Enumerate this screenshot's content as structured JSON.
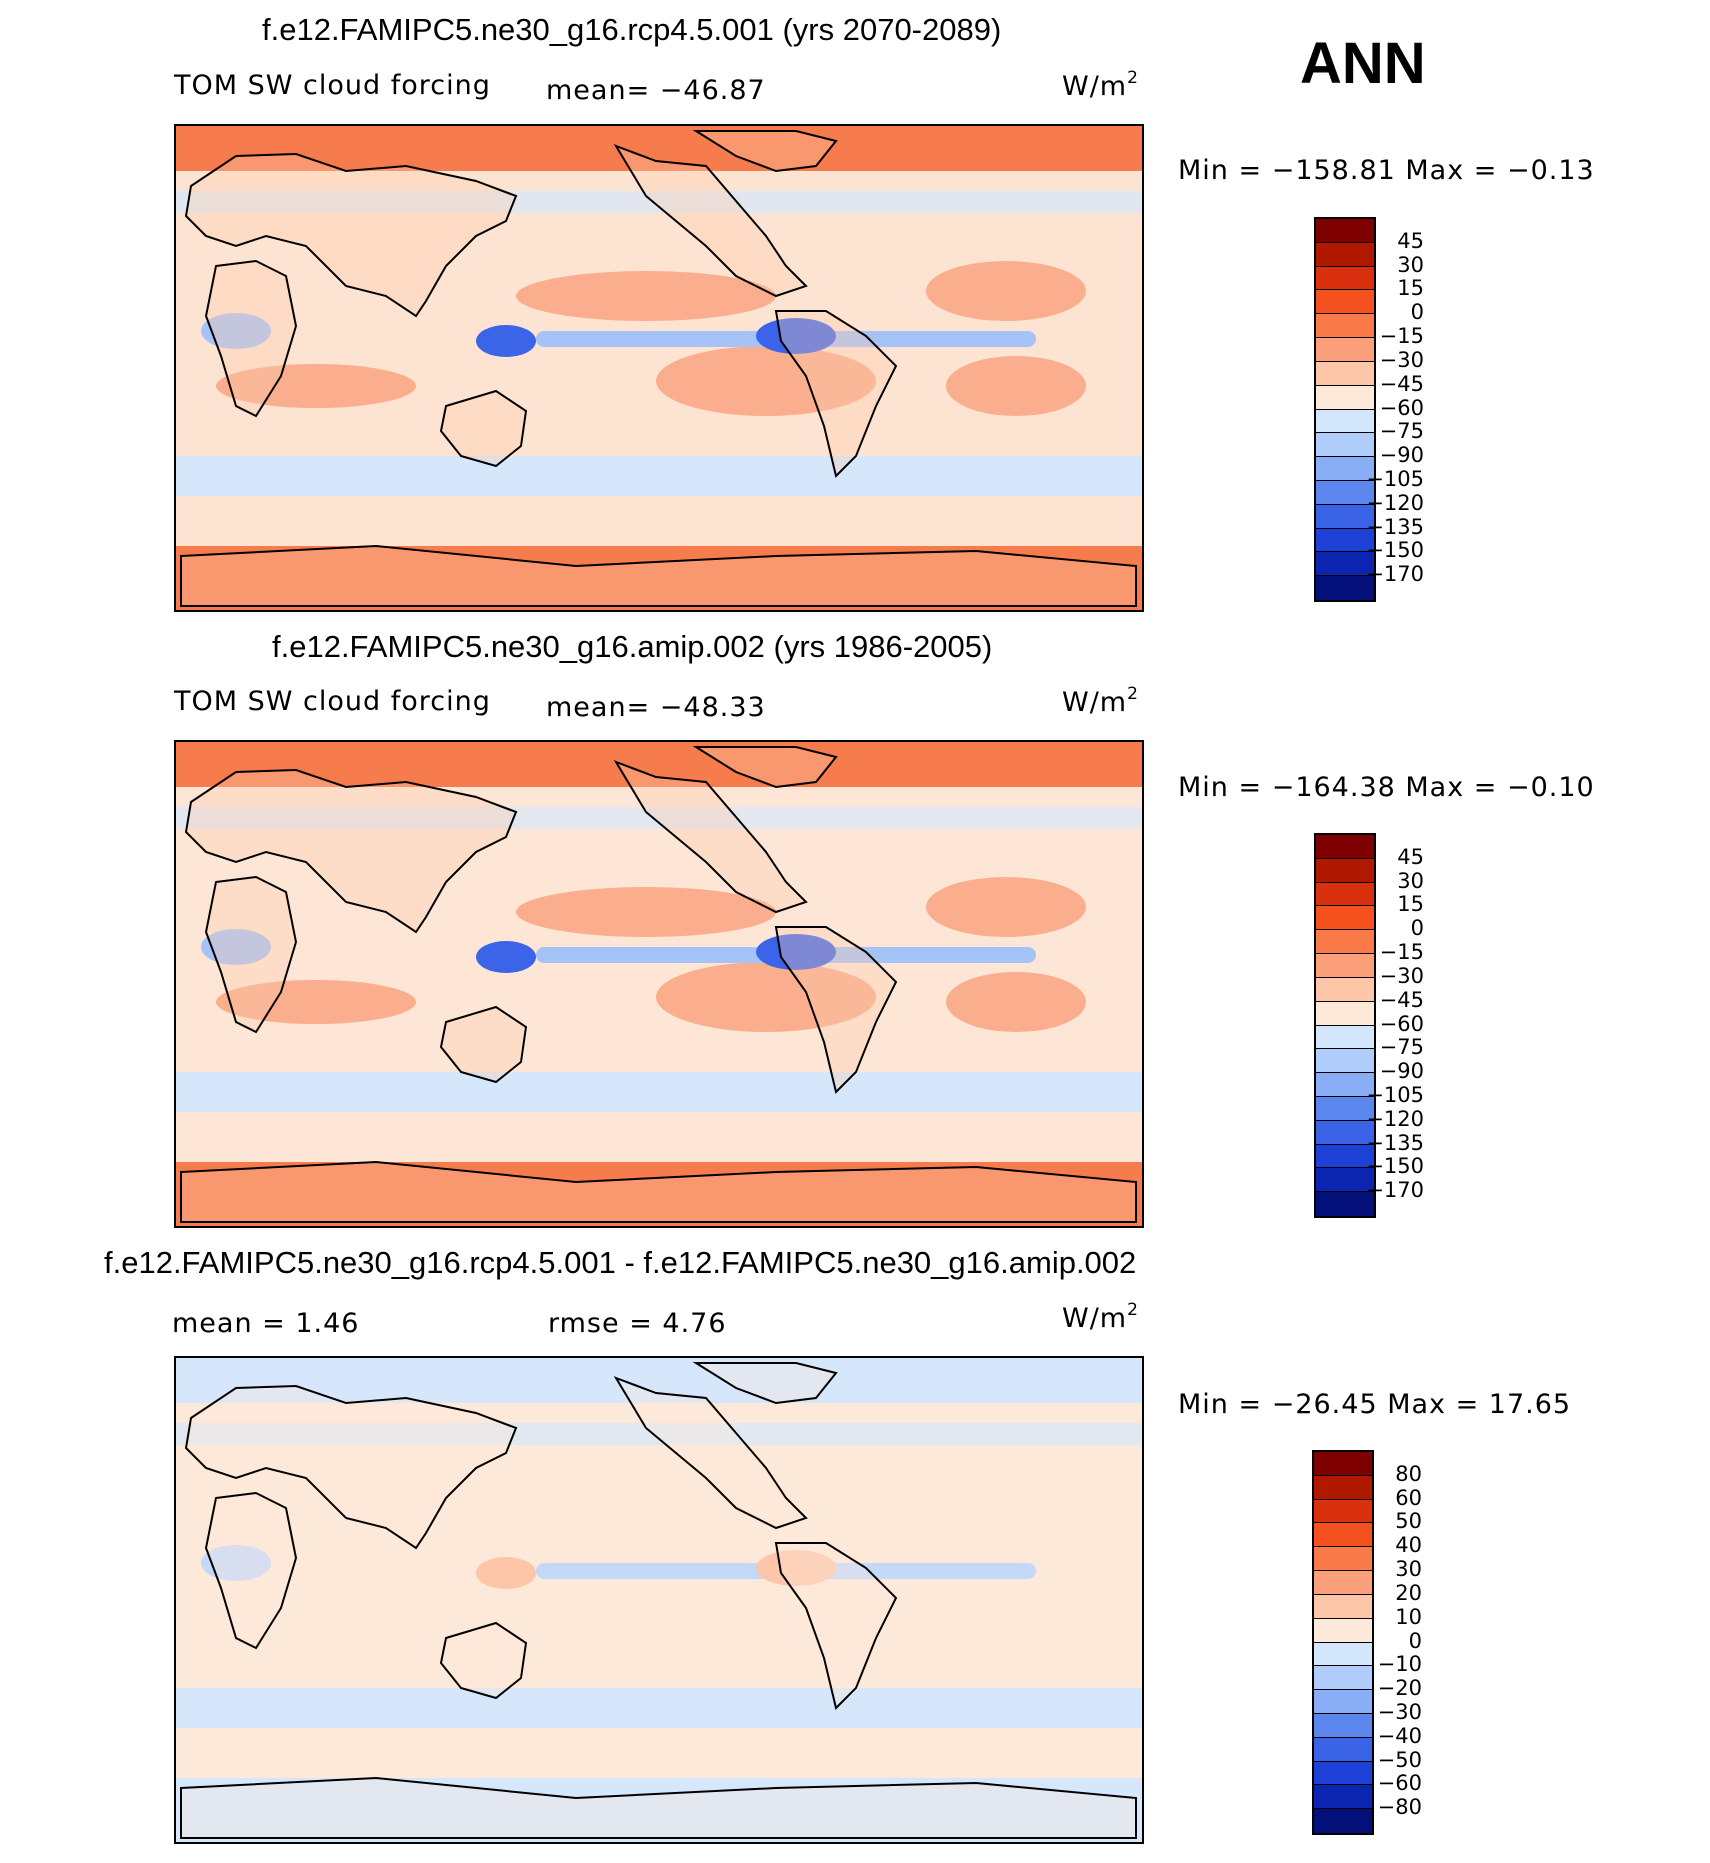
{
  "season": "ANN",
  "panels": [
    {
      "title": "f.e12.FAMIPC5.ne30_g16.rcp4.5.001 (yrs 2070-2089)",
      "left_label": "TOM SW cloud forcing",
      "center_label": "mean= −46.87",
      "units": "W/m",
      "units_sup": "2",
      "stats": "Min = −158.81 Max =   −0.13",
      "colorbar": {
        "labels": [
          "45",
          "30",
          "15",
          "0",
          "−15",
          "−30",
          "−45",
          "−60",
          "−75",
          "−90",
          "−105",
          "−120",
          "−135",
          "−150",
          "−170"
        ],
        "colors": [
          "#7f0000",
          "#b01800",
          "#d93010",
          "#f4511e",
          "#fb7a4a",
          "#fca07c",
          "#fdc6a9",
          "#fde9d9",
          "#d4e6fb",
          "#b0ccfa",
          "#8aaef5",
          "#5b86ee",
          "#3a63e6",
          "#1d40d6",
          "#0c25b0",
          "#03107a"
        ]
      },
      "map_palette": {
        "ocean": "#fde4d2",
        "land": "#fcccb0",
        "poles": "#f77c4d",
        "subtropic": "#fbae8d",
        "storm": "#d6e7fb",
        "convect": "#a6c3f8",
        "deep": "#3c64e8"
      }
    },
    {
      "title": "f.e12.FAMIPC5.ne30_g16.amip.002 (yrs 1986-2005)",
      "left_label": "TOM SW cloud forcing",
      "center_label": "mean= −48.33",
      "units": "W/m",
      "units_sup": "2",
      "stats": "Min = −164.38 Max =   −0.10",
      "colorbar": {
        "labels": [
          "45",
          "30",
          "15",
          "0",
          "−15",
          "−30",
          "−45",
          "−60",
          "−75",
          "−90",
          "−105",
          "−120",
          "−135",
          "−150",
          "−170"
        ],
        "colors": [
          "#7f0000",
          "#b01800",
          "#d93010",
          "#f4511e",
          "#fb7a4a",
          "#fca07c",
          "#fdc6a9",
          "#fde9d9",
          "#d4e6fb",
          "#b0ccfa",
          "#8aaef5",
          "#5b86ee",
          "#3a63e6",
          "#1d40d6",
          "#0c25b0",
          "#03107a"
        ]
      },
      "map_palette": {
        "ocean": "#fde6d6",
        "land": "#fcccb0",
        "poles": "#f77c4d",
        "subtropic": "#fbae8d",
        "storm": "#d6e7fb",
        "convect": "#a6c3f8",
        "deep": "#3c64e8"
      }
    },
    {
      "title": "f.e12.FAMIPC5.ne30_g16.rcp4.5.001 - f.e12.FAMIPC5.ne30_g16.amip.002",
      "left_label": "mean =    1.46",
      "center_label": "rmse =    4.76",
      "units": "W/m",
      "units_sup": "2",
      "stats": "Min = −26.45 Max =   17.65",
      "colorbar": {
        "labels": [
          "80",
          "60",
          "50",
          "40",
          "30",
          "20",
          "10",
          "0",
          "−10",
          "−20",
          "−30",
          "−40",
          "−50",
          "−60",
          "−80"
        ],
        "colors": [
          "#7f0000",
          "#b01800",
          "#d93010",
          "#f4511e",
          "#fb7a4a",
          "#fca07c",
          "#fdc6a9",
          "#fde9d9",
          "#d4e6fb",
          "#b0ccfa",
          "#8aaef5",
          "#5b86ee",
          "#3a63e6",
          "#1d40d6",
          "#0c25b0",
          "#03107a"
        ]
      },
      "map_palette": {
        "ocean": "#fde9d9",
        "land": "#fde9d9",
        "poles": "#d6e7fb",
        "subtropic": "#fde9d9",
        "storm": "#d6e7fb",
        "convect": "#c3d9fa",
        "deep": "#fdc6a9"
      }
    }
  ]
}
